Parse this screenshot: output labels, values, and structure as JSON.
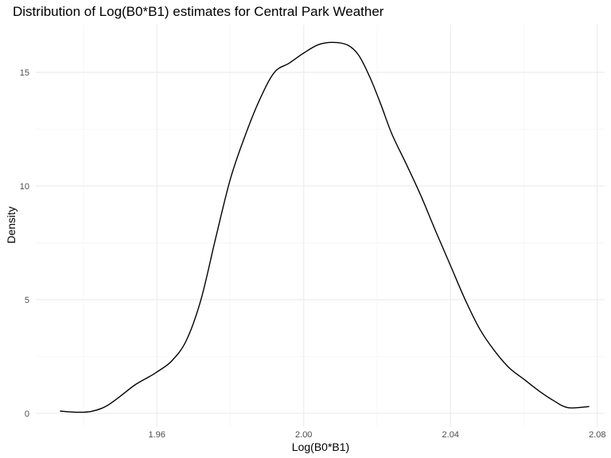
{
  "chart_data": {
    "type": "line",
    "title": "Distribution of Log(B0*B1) estimates for Central Park Weather",
    "xlabel": "Log(B0*B1)",
    "ylabel": "Density",
    "xlim": [
      1.927,
      2.082
    ],
    "ylim": [
      -0.6,
      17.1
    ],
    "x_ticks": [
      1.96,
      2.0,
      2.04,
      2.08
    ],
    "x_tick_labels": [
      "1.96",
      "2.00",
      "2.04",
      "2.08"
    ],
    "x_minor_ticks": [
      1.94,
      1.98,
      2.02,
      2.06
    ],
    "y_ticks": [
      0,
      5,
      10,
      15
    ],
    "y_tick_labels": [
      "0",
      "5",
      "10",
      "15"
    ],
    "y_minor_ticks": [
      2.5,
      7.5,
      12.5
    ],
    "grid": true,
    "legend": "none",
    "line_color": "#000000",
    "series": [
      {
        "x": [
          1.9336,
          1.938,
          1.942,
          1.946,
          1.95,
          1.954,
          1.958,
          1.96,
          1.964,
          1.968,
          1.972,
          1.976,
          1.98,
          1.984,
          1.988,
          1.992,
          1.996,
          2.0,
          2.004,
          2.008,
          2.012,
          2.015,
          2.018,
          2.021,
          2.024,
          2.028,
          2.032,
          2.036,
          2.04,
          2.044,
          2.048,
          2.052,
          2.056,
          2.06,
          2.064,
          2.068,
          2.072,
          2.0778
        ],
        "y": [
          0.1,
          0.05,
          0.08,
          0.3,
          0.75,
          1.25,
          1.62,
          1.82,
          2.3,
          3.2,
          5.0,
          7.7,
          10.3,
          12.2,
          13.8,
          15.0,
          15.4,
          15.85,
          16.22,
          16.32,
          16.2,
          15.75,
          14.8,
          13.6,
          12.3,
          10.95,
          9.55,
          8.0,
          6.5,
          5.0,
          3.7,
          2.75,
          2.0,
          1.5,
          1.0,
          0.57,
          0.25,
          0.3
        ]
      }
    ]
  }
}
